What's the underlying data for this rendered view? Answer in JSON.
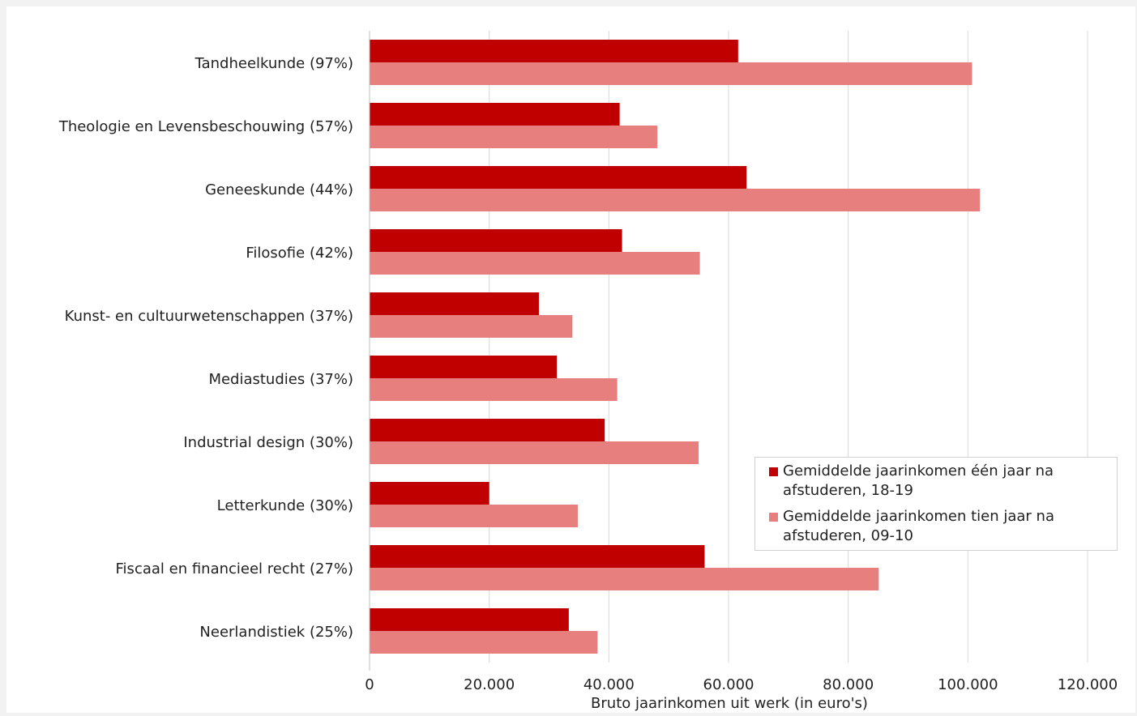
{
  "chart_data": {
    "type": "bar",
    "orientation": "horizontal",
    "categories": [
      "Tandheelkunde (97%)",
      "Theologie en Levensbeschouwing (57%)",
      "Geneeskunde (44%)",
      "Filosofie (42%)",
      "Kunst- en cultuurwetenschappen (37%)",
      "Mediastudies (37%)",
      "Industrial design (30%)",
      "Letterkunde (30%)",
      "Fiscaal en financieel recht (27%)",
      "Neerlandistiek (25%)"
    ],
    "series": [
      {
        "name": "Gemiddelde jaarinkomen één jaar na afstuderen, 18-19",
        "color": "#c00000",
        "values": [
          61600,
          41800,
          63000,
          42200,
          28300,
          31300,
          39300,
          20000,
          56000,
          33300
        ]
      },
      {
        "name": "Gemiddelde jaarinkomen tien jaar na afstuderen, 09-10",
        "color": "#e67f7e",
        "values": [
          100700,
          48100,
          102000,
          55200,
          33900,
          41400,
          55000,
          34800,
          85100,
          38100
        ]
      }
    ],
    "xlabel": "Bruto jaarinkomen uit werk (in euro's)",
    "ylabel": "",
    "xlim": [
      0,
      120000
    ],
    "xticks": [
      "0",
      "20.000",
      "40.000",
      "60.000",
      "80.000",
      "100.000",
      "120.000"
    ],
    "grid": true,
    "legend_position": "bottom-right"
  }
}
